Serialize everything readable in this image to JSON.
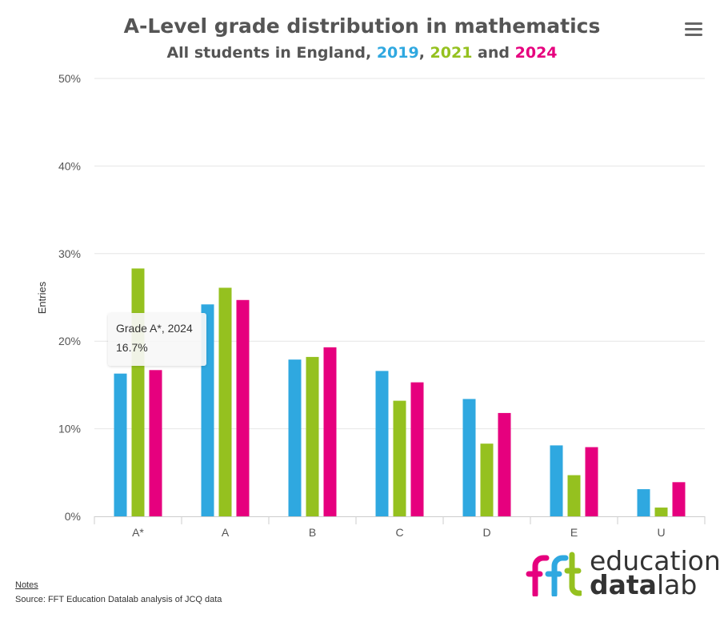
{
  "chart_data": {
    "type": "bar",
    "title": "A-Level grade distribution in mathematics",
    "subtitle": {
      "prefix": "All students in England, ",
      "sep1": ", ",
      "sep2": " and ",
      "year_2019": "2019",
      "year_2021": "2021",
      "year_2024": "2024"
    },
    "ylabel": "Entries",
    "xlabel": "",
    "ylim": [
      0,
      50
    ],
    "yticks": [
      "0%",
      "10%",
      "20%",
      "30%",
      "40%",
      "50%"
    ],
    "ytick_values": [
      0,
      10,
      20,
      30,
      40,
      50
    ],
    "categories": [
      "A*",
      "A",
      "B",
      "C",
      "D",
      "E",
      "U"
    ],
    "series": [
      {
        "name": "2019",
        "color": "#2fa8e0",
        "values": [
          16.3,
          24.2,
          17.9,
          16.6,
          13.4,
          8.1,
          3.1
        ]
      },
      {
        "name": "2021",
        "color": "#95c11f",
        "values": [
          28.3,
          26.1,
          18.2,
          13.2,
          8.3,
          4.7,
          1.0
        ]
      },
      {
        "name": "2024",
        "color": "#e6007e",
        "values": [
          16.7,
          24.7,
          19.3,
          15.3,
          11.8,
          7.9,
          3.9
        ]
      }
    ],
    "grid": true,
    "legend": "none"
  },
  "tooltip": {
    "line1": "Grade A*, 2024",
    "line2": "16.7%"
  },
  "notes_label": "Notes",
  "source": "Source: FFT Education Datalab analysis of JCQ data",
  "logo": {
    "fft": "fft",
    "education": "education",
    "data": "data",
    "lab": "lab",
    "colors": [
      "#e6007e",
      "#2fa8e0",
      "#95c11f"
    ]
  },
  "menu_icon": "hamburger-menu-icon"
}
